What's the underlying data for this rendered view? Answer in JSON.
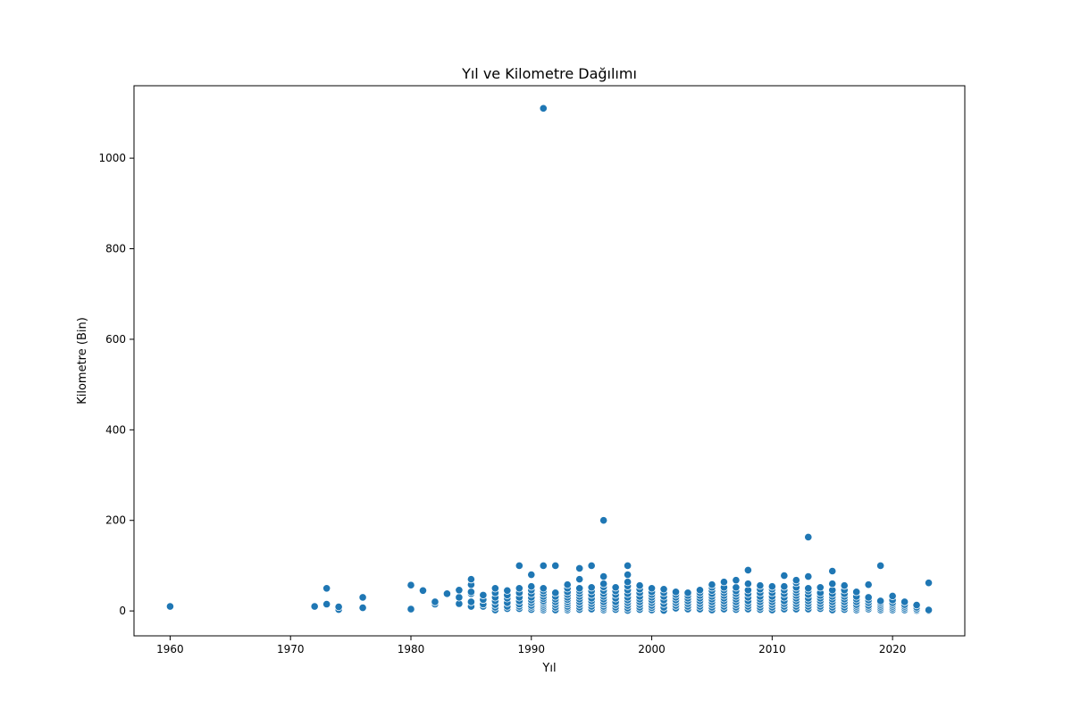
{
  "chart_data": {
    "type": "scatter",
    "title": "Yıl ve Kilometre Dağılımı",
    "xlabel": "Yıl",
    "ylabel": "Kilometre (Bin)",
    "xlim": [
      1957,
      2026
    ],
    "ylim": [
      -55,
      1160
    ],
    "xticks": [
      1960,
      1970,
      1980,
      1990,
      2000,
      2010,
      2020
    ],
    "yticks": [
      0,
      200,
      400,
      600,
      800,
      1000
    ],
    "grid": false,
    "legend": "none",
    "marker_color": "#1f77b4",
    "points": [
      [
        1960,
        10
      ],
      [
        1972,
        10
      ],
      [
        1973,
        15
      ],
      [
        1973,
        50
      ],
      [
        1974,
        3
      ],
      [
        1974,
        9
      ],
      [
        1976,
        7
      ],
      [
        1976,
        30
      ],
      [
        1980,
        4
      ],
      [
        1980,
        57
      ],
      [
        1981,
        45
      ],
      [
        1982,
        15
      ],
      [
        1982,
        20
      ],
      [
        1983,
        38
      ],
      [
        1984,
        16
      ],
      [
        1984,
        30
      ],
      [
        1984,
        46
      ],
      [
        1985,
        10
      ],
      [
        1985,
        20
      ],
      [
        1985,
        38
      ],
      [
        1985,
        42
      ],
      [
        1985,
        58
      ],
      [
        1985,
        70
      ],
      [
        1986,
        10
      ],
      [
        1986,
        15
      ],
      [
        1986,
        25
      ],
      [
        1986,
        35
      ],
      [
        1987,
        2
      ],
      [
        1987,
        8
      ],
      [
        1987,
        14
      ],
      [
        1987,
        22
      ],
      [
        1987,
        30
      ],
      [
        1987,
        40
      ],
      [
        1987,
        50
      ],
      [
        1988,
        5
      ],
      [
        1988,
        10
      ],
      [
        1988,
        18
      ],
      [
        1988,
        28
      ],
      [
        1988,
        35
      ],
      [
        1988,
        45
      ],
      [
        1989,
        5
      ],
      [
        1989,
        10
      ],
      [
        1989,
        15
      ],
      [
        1989,
        22
      ],
      [
        1989,
        30
      ],
      [
        1989,
        40
      ],
      [
        1989,
        50
      ],
      [
        1989,
        100
      ],
      [
        1990,
        3
      ],
      [
        1990,
        8
      ],
      [
        1990,
        12
      ],
      [
        1990,
        18
      ],
      [
        1990,
        24
      ],
      [
        1990,
        30
      ],
      [
        1990,
        38
      ],
      [
        1990,
        46
      ],
      [
        1990,
        54
      ],
      [
        1990,
        80
      ],
      [
        1991,
        2
      ],
      [
        1991,
        6
      ],
      [
        1991,
        10
      ],
      [
        1991,
        14
      ],
      [
        1991,
        18
      ],
      [
        1991,
        22
      ],
      [
        1991,
        27
      ],
      [
        1991,
        32
      ],
      [
        1991,
        38
      ],
      [
        1991,
        44
      ],
      [
        1991,
        50
      ],
      [
        1991,
        100
      ],
      [
        1991,
        1110
      ],
      [
        1992,
        2
      ],
      [
        1992,
        8
      ],
      [
        1992,
        14
      ],
      [
        1992,
        20
      ],
      [
        1992,
        26
      ],
      [
        1992,
        32
      ],
      [
        1992,
        40
      ],
      [
        1992,
        100
      ],
      [
        1993,
        2
      ],
      [
        1993,
        6
      ],
      [
        1993,
        10
      ],
      [
        1993,
        15
      ],
      [
        1993,
        20
      ],
      [
        1993,
        25
      ],
      [
        1993,
        30
      ],
      [
        1993,
        36
      ],
      [
        1993,
        42
      ],
      [
        1993,
        50
      ],
      [
        1993,
        58
      ],
      [
        1994,
        3
      ],
      [
        1994,
        8
      ],
      [
        1994,
        14
      ],
      [
        1994,
        20
      ],
      [
        1994,
        26
      ],
      [
        1994,
        32
      ],
      [
        1994,
        38
      ],
      [
        1994,
        44
      ],
      [
        1994,
        50
      ],
      [
        1994,
        70
      ],
      [
        1994,
        94
      ],
      [
        1995,
        4
      ],
      [
        1995,
        10
      ],
      [
        1995,
        16
      ],
      [
        1995,
        22
      ],
      [
        1995,
        28
      ],
      [
        1995,
        36
      ],
      [
        1995,
        44
      ],
      [
        1995,
        52
      ],
      [
        1995,
        100
      ],
      [
        1996,
        2
      ],
      [
        1996,
        6
      ],
      [
        1996,
        10
      ],
      [
        1996,
        15
      ],
      [
        1996,
        20
      ],
      [
        1996,
        26
      ],
      [
        1996,
        32
      ],
      [
        1996,
        38
      ],
      [
        1996,
        45
      ],
      [
        1996,
        53
      ],
      [
        1996,
        60
      ],
      [
        1996,
        76
      ],
      [
        1996,
        200
      ],
      [
        1997,
        3
      ],
      [
        1997,
        8
      ],
      [
        1997,
        14
      ],
      [
        1997,
        20
      ],
      [
        1997,
        28
      ],
      [
        1997,
        36
      ],
      [
        1997,
        44
      ],
      [
        1997,
        52
      ],
      [
        1998,
        1
      ],
      [
        1998,
        6
      ],
      [
        1998,
        12
      ],
      [
        1998,
        18
      ],
      [
        1998,
        24
      ],
      [
        1998,
        30
      ],
      [
        1998,
        38
      ],
      [
        1998,
        46
      ],
      [
        1998,
        55
      ],
      [
        1998,
        64
      ],
      [
        1998,
        80
      ],
      [
        1998,
        100
      ],
      [
        1999,
        3
      ],
      [
        1999,
        8
      ],
      [
        1999,
        14
      ],
      [
        1999,
        20
      ],
      [
        1999,
        26
      ],
      [
        1999,
        32
      ],
      [
        1999,
        40
      ],
      [
        1999,
        48
      ],
      [
        1999,
        56
      ],
      [
        2000,
        2
      ],
      [
        2000,
        7
      ],
      [
        2000,
        12
      ],
      [
        2000,
        18
      ],
      [
        2000,
        24
      ],
      [
        2000,
        30
      ],
      [
        2000,
        36
      ],
      [
        2000,
        42
      ],
      [
        2000,
        50
      ],
      [
        2001,
        1
      ],
      [
        2001,
        8
      ],
      [
        2001,
        16
      ],
      [
        2001,
        24
      ],
      [
        2001,
        32
      ],
      [
        2001,
        40
      ],
      [
        2001,
        48
      ],
      [
        2002,
        6
      ],
      [
        2002,
        12
      ],
      [
        2002,
        18
      ],
      [
        2002,
        24
      ],
      [
        2002,
        30
      ],
      [
        2002,
        36
      ],
      [
        2002,
        42
      ],
      [
        2003,
        4
      ],
      [
        2003,
        10
      ],
      [
        2003,
        16
      ],
      [
        2003,
        22
      ],
      [
        2003,
        28
      ],
      [
        2003,
        34
      ],
      [
        2003,
        40
      ],
      [
        2004,
        4
      ],
      [
        2004,
        10
      ],
      [
        2004,
        16
      ],
      [
        2004,
        22
      ],
      [
        2004,
        28
      ],
      [
        2004,
        34
      ],
      [
        2004,
        40
      ],
      [
        2004,
        46
      ],
      [
        2005,
        2
      ],
      [
        2005,
        8
      ],
      [
        2005,
        14
      ],
      [
        2005,
        20
      ],
      [
        2005,
        26
      ],
      [
        2005,
        32
      ],
      [
        2005,
        38
      ],
      [
        2005,
        45
      ],
      [
        2005,
        52
      ],
      [
        2005,
        58
      ],
      [
        2006,
        4
      ],
      [
        2006,
        10
      ],
      [
        2006,
        16
      ],
      [
        2006,
        22
      ],
      [
        2006,
        28
      ],
      [
        2006,
        34
      ],
      [
        2006,
        40
      ],
      [
        2006,
        46
      ],
      [
        2006,
        52
      ],
      [
        2006,
        64
      ],
      [
        2007,
        3
      ],
      [
        2007,
        8
      ],
      [
        2007,
        14
      ],
      [
        2007,
        20
      ],
      [
        2007,
        26
      ],
      [
        2007,
        32
      ],
      [
        2007,
        38
      ],
      [
        2007,
        44
      ],
      [
        2007,
        52
      ],
      [
        2007,
        68
      ],
      [
        2008,
        4
      ],
      [
        2008,
        10
      ],
      [
        2008,
        16
      ],
      [
        2008,
        22
      ],
      [
        2008,
        30
      ],
      [
        2008,
        38
      ],
      [
        2008,
        46
      ],
      [
        2008,
        60
      ],
      [
        2008,
        90
      ],
      [
        2009,
        3
      ],
      [
        2009,
        8
      ],
      [
        2009,
        14
      ],
      [
        2009,
        20
      ],
      [
        2009,
        26
      ],
      [
        2009,
        32
      ],
      [
        2009,
        40
      ],
      [
        2009,
        48
      ],
      [
        2009,
        56
      ],
      [
        2010,
        2
      ],
      [
        2010,
        8
      ],
      [
        2010,
        14
      ],
      [
        2010,
        20
      ],
      [
        2010,
        26
      ],
      [
        2010,
        32
      ],
      [
        2010,
        40
      ],
      [
        2010,
        48
      ],
      [
        2010,
        54
      ],
      [
        2011,
        4
      ],
      [
        2011,
        10
      ],
      [
        2011,
        16
      ],
      [
        2011,
        22
      ],
      [
        2011,
        30
      ],
      [
        2011,
        38
      ],
      [
        2011,
        46
      ],
      [
        2011,
        54
      ],
      [
        2011,
        78
      ],
      [
        2012,
        4
      ],
      [
        2012,
        10
      ],
      [
        2012,
        16
      ],
      [
        2012,
        22
      ],
      [
        2012,
        28
      ],
      [
        2012,
        34
      ],
      [
        2012,
        40
      ],
      [
        2012,
        46
      ],
      [
        2012,
        52
      ],
      [
        2012,
        62
      ],
      [
        2012,
        68
      ],
      [
        2013,
        4
      ],
      [
        2013,
        10
      ],
      [
        2013,
        16
      ],
      [
        2013,
        22
      ],
      [
        2013,
        28
      ],
      [
        2013,
        36
      ],
      [
        2013,
        44
      ],
      [
        2013,
        50
      ],
      [
        2013,
        76
      ],
      [
        2013,
        163
      ],
      [
        2014,
        5
      ],
      [
        2014,
        10
      ],
      [
        2014,
        16
      ],
      [
        2014,
        22
      ],
      [
        2014,
        28
      ],
      [
        2014,
        34
      ],
      [
        2014,
        40
      ],
      [
        2014,
        52
      ],
      [
        2015,
        2
      ],
      [
        2015,
        8
      ],
      [
        2015,
        14
      ],
      [
        2015,
        20
      ],
      [
        2015,
        26
      ],
      [
        2015,
        32
      ],
      [
        2015,
        38
      ],
      [
        2015,
        46
      ],
      [
        2015,
        60
      ],
      [
        2015,
        88
      ],
      [
        2016,
        3
      ],
      [
        2016,
        8
      ],
      [
        2016,
        14
      ],
      [
        2016,
        20
      ],
      [
        2016,
        26
      ],
      [
        2016,
        32
      ],
      [
        2016,
        38
      ],
      [
        2016,
        46
      ],
      [
        2016,
        56
      ],
      [
        2017,
        2
      ],
      [
        2017,
        6
      ],
      [
        2017,
        10
      ],
      [
        2017,
        14
      ],
      [
        2017,
        20
      ],
      [
        2017,
        26
      ],
      [
        2017,
        32
      ],
      [
        2017,
        42
      ],
      [
        2018,
        4
      ],
      [
        2018,
        8
      ],
      [
        2018,
        12
      ],
      [
        2018,
        18
      ],
      [
        2018,
        24
      ],
      [
        2018,
        30
      ],
      [
        2018,
        58
      ],
      [
        2019,
        2
      ],
      [
        2019,
        6
      ],
      [
        2019,
        10
      ],
      [
        2019,
        14
      ],
      [
        2019,
        18
      ],
      [
        2019,
        22
      ],
      [
        2019,
        100
      ],
      [
        2020,
        2
      ],
      [
        2020,
        6
      ],
      [
        2020,
        10
      ],
      [
        2020,
        14
      ],
      [
        2020,
        18
      ],
      [
        2020,
        24
      ],
      [
        2020,
        33
      ],
      [
        2021,
        2
      ],
      [
        2021,
        6
      ],
      [
        2021,
        10
      ],
      [
        2021,
        14
      ],
      [
        2021,
        20
      ],
      [
        2022,
        1
      ],
      [
        2022,
        4
      ],
      [
        2022,
        8
      ],
      [
        2022,
        13
      ],
      [
        2023,
        0
      ],
      [
        2023,
        2
      ],
      [
        2023,
        62
      ]
    ]
  }
}
